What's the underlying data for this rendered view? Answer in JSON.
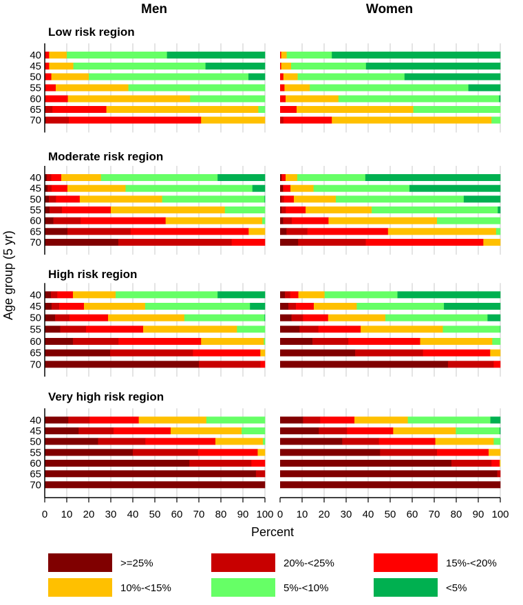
{
  "chart_data": {
    "type": "bar",
    "orientation": "horizontal",
    "stacked": true,
    "ylabel": "Age group (5 yr)",
    "xlabel": "Percent",
    "xlim": [
      0,
      100
    ],
    "xticks": [
      "0",
      "10",
      "20",
      "30",
      "40",
      "50",
      "60",
      "70",
      "80",
      "90",
      "100"
    ],
    "grid": true,
    "legend_position": "bottom",
    "column_titles": [
      "Men",
      "Women"
    ],
    "categories": [
      "40",
      "45",
      "50",
      "55",
      "60",
      "65",
      "70"
    ],
    "series_names": [
      ">=25%",
      "20%-<25%",
      "15%-<20%",
      "10%-<15%",
      "5%-<10%",
      "<5%"
    ],
    "colors": [
      "#800000",
      "#c80000",
      "#ff0000",
      "#ffc000",
      "#66ff66",
      "#00b050"
    ],
    "panels": [
      {
        "title": "Low risk region",
        "men": [
          [
            0,
            0,
            2,
            8,
            45.5,
            44.5
          ],
          [
            0,
            0,
            2,
            11,
            60,
            27
          ],
          [
            0,
            0,
            3,
            17,
            72.5,
            7.5
          ],
          [
            0,
            0,
            5,
            33,
            62,
            0
          ],
          [
            0,
            0,
            10.5,
            55.5,
            34,
            0
          ],
          [
            0,
            3.5,
            24.5,
            69,
            3,
            0
          ],
          [
            0.5,
            10.5,
            60,
            29,
            0,
            0
          ]
        ],
        "women": [
          [
            0,
            0,
            0.5,
            2.5,
            20.5,
            76.5
          ],
          [
            0,
            0,
            0.5,
            4.5,
            34,
            61
          ],
          [
            0,
            0,
            1.5,
            6.5,
            48.5,
            43.5
          ],
          [
            0,
            0,
            2,
            11.5,
            72,
            14.5
          ],
          [
            0,
            0,
            2.5,
            24,
            73,
            0.5
          ],
          [
            0,
            0,
            7.5,
            53,
            39.5,
            0
          ],
          [
            0,
            1.5,
            22,
            72.5,
            4,
            0
          ]
        ]
      },
      {
        "title": "Moderate risk region",
        "men": [
          [
            1,
            2,
            4.5,
            18,
            53,
            21.5
          ],
          [
            1.3,
            1.8,
            7.2,
            26.4,
            57.6,
            5.7
          ],
          [
            1.9,
            3.2,
            10.8,
            37.4,
            46.5,
            0.2
          ],
          [
            2.2,
            5.6,
            22.2,
            51.8,
            18.2,
            0
          ],
          [
            3.9,
            12.35,
            38.65,
            43.85,
            1.25,
            0
          ],
          [
            10.3,
            28.7,
            53.6,
            7.4,
            0,
            0
          ],
          [
            33.4,
            51.5,
            15.1,
            0,
            0,
            0
          ]
        ],
        "women": [
          [
            0.7,
            0,
            1.8,
            5.3,
            30.9,
            61.3
          ],
          [
            1.35,
            0,
            3.35,
            10.5,
            43.55,
            41.25
          ],
          [
            0.6,
            1.1,
            4.55,
            19.05,
            58.1,
            16.6
          ],
          [
            0.7,
            1.9,
            9,
            30,
            57.25,
            1.15
          ],
          [
            1.35,
            3.95,
            16.7,
            49.25,
            28.75,
            0
          ],
          [
            2.9,
            9.5,
            36.6,
            49.1,
            1.9,
            0
          ],
          [
            8.2,
            30.7,
            53.4,
            7.7,
            0,
            0
          ]
        ]
      },
      {
        "title": "High risk region",
        "men": [
          [
            2.8,
            2.9,
            7.1,
            19.4,
            46.3,
            21.5
          ],
          [
            3.1,
            3.5,
            11.2,
            27.8,
            47.6,
            6.8
          ],
          [
            4.7,
            6.55,
            17.5,
            34.65,
            36.4,
            0.2
          ],
          [
            7,
            11.75,
            25.95,
            42.6,
            12.7,
            0
          ],
          [
            12.8,
            20.7,
            37.5,
            28.5,
            0.5,
            0
          ],
          [
            29.7,
            37.6,
            30.6,
            2.1,
            0,
            0
          ],
          [
            70,
            27.9,
            2.1,
            0,
            0,
            0
          ]
        ],
        "women": [
          [
            2.2,
            2.4,
            3.7,
            11.9,
            33.1,
            46.7
          ],
          [
            3.75,
            3.45,
            8.1,
            19.5,
            39.6,
            25.6
          ],
          [
            5.2,
            5.2,
            11.4,
            26,
            46.4,
            5.8
          ],
          [
            8.85,
            8.55,
            19.2,
            37.3,
            26,
            0.1
          ],
          [
            14.7,
            16.3,
            32.6,
            32.75,
            3.65,
            0
          ],
          [
            34.1,
            30.8,
            30.5,
            4.6,
            0,
            0
          ],
          [
            76.25,
            20.75,
            3,
            0,
            0,
            0
          ]
        ]
      },
      {
        "title": "Very high risk region",
        "men": [
          [
            10.7,
            9.7,
            22.3,
            30.7,
            26.6,
            0
          ],
          [
            15.4,
            15.85,
            25.95,
            32.2,
            10.6,
            0
          ],
          [
            24.2,
            21.5,
            31.8,
            21.6,
            0.9,
            0
          ],
          [
            40,
            29.6,
            27.1,
            3.3,
            0,
            0
          ],
          [
            65.7,
            28.15,
            6.15,
            0,
            0,
            0
          ],
          [
            95.9,
            4.1,
            0,
            0,
            0,
            0
          ],
          [
            100,
            0,
            0,
            0,
            0,
            0
          ]
        ],
        "women": [
          [
            10.4,
            7.8,
            15.55,
            24.25,
            37.5,
            4.5
          ],
          [
            17.6,
            12.8,
            20.95,
            28.45,
            19.9,
            0.3
          ],
          [
            28.2,
            16.7,
            25.6,
            26.5,
            3,
            0
          ],
          [
            45.4,
            25.85,
            23.45,
            5.3,
            0,
            0
          ],
          [
            77.8,
            18.2,
            3.7,
            0.3,
            0,
            0
          ],
          [
            98.6,
            1.4,
            0,
            0,
            0,
            0
          ],
          [
            100,
            0,
            0,
            0,
            0,
            0
          ]
        ]
      }
    ]
  }
}
